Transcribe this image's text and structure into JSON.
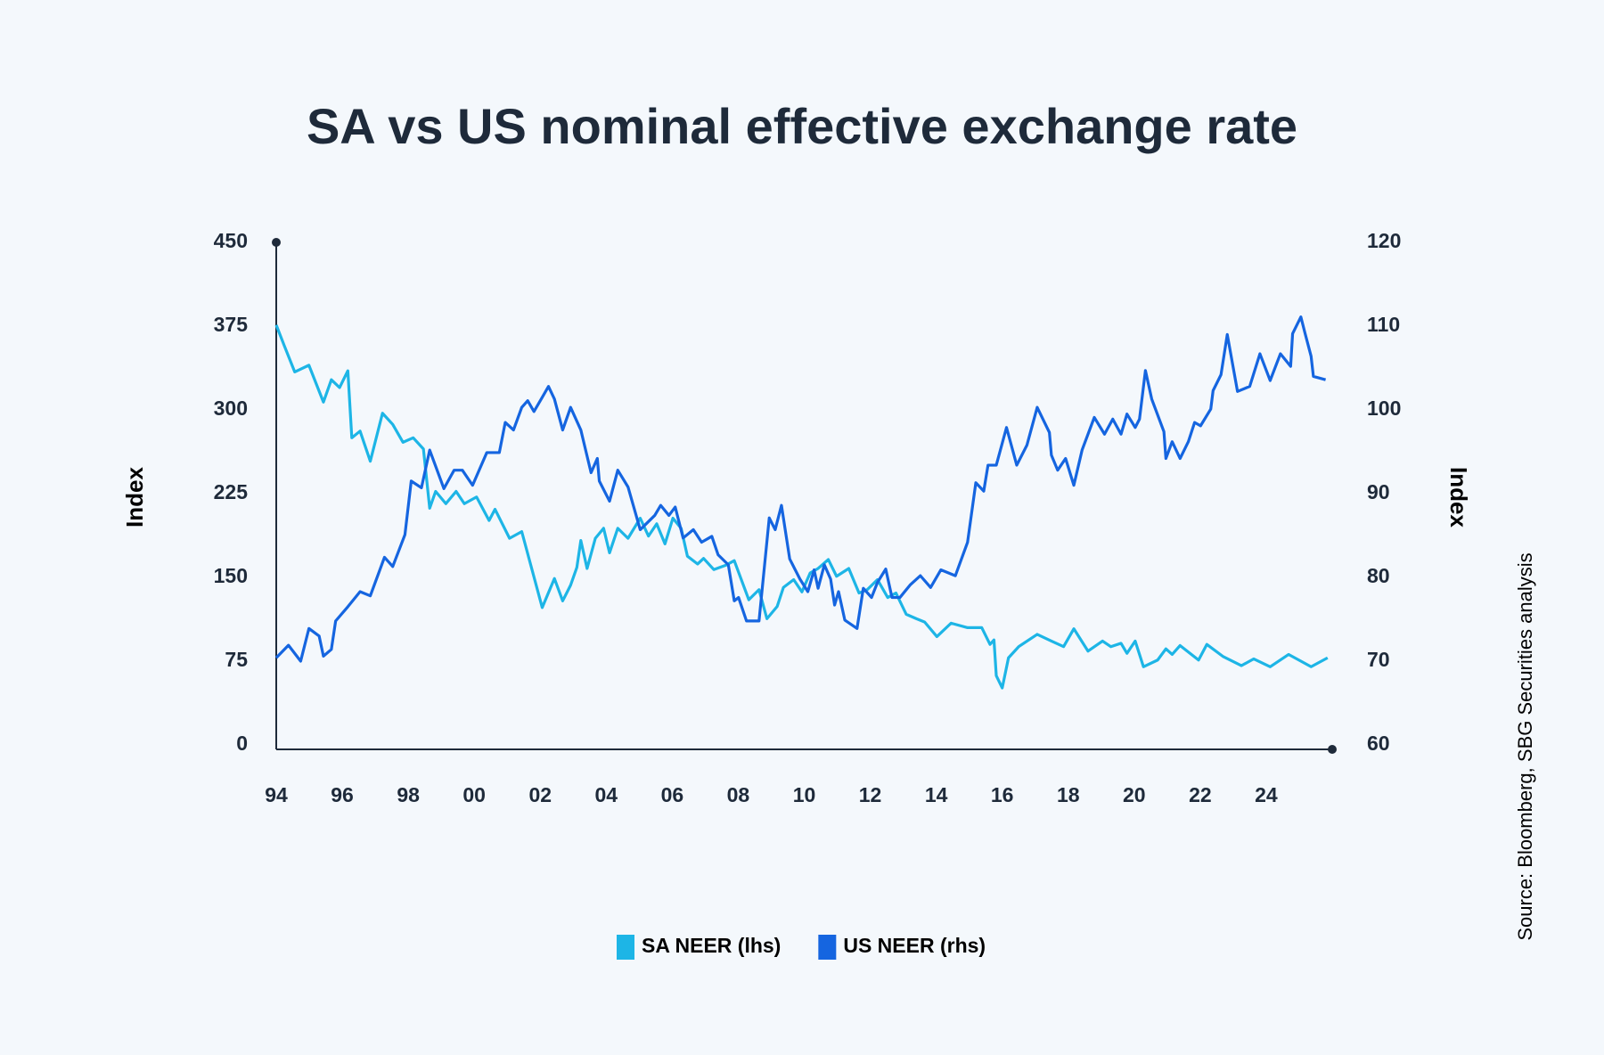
{
  "chart_data": {
    "type": "line",
    "title": "SA vs US nominal effective exchange rate",
    "y_label": "Index",
    "y2_label": "Index",
    "source": "Source: Bloomberg, SBG Securities analysis",
    "legend": "bottom",
    "xlim": [
      1994,
      2026
    ],
    "xticks": [
      {
        "value": 1994,
        "label": "94"
      },
      {
        "value": 1996,
        "label": "96"
      },
      {
        "value": 1998,
        "label": "98"
      },
      {
        "value": 2000,
        "label": "00"
      },
      {
        "value": 2002,
        "label": "02"
      },
      {
        "value": 2004,
        "label": "04"
      },
      {
        "value": 2006,
        "label": "06"
      },
      {
        "value": 2008,
        "label": "08"
      },
      {
        "value": 2010,
        "label": "10"
      },
      {
        "value": 2012,
        "label": "12"
      },
      {
        "value": 2014,
        "label": "14"
      },
      {
        "value": 2016,
        "label": "16"
      },
      {
        "value": 2018,
        "label": "18"
      },
      {
        "value": 2020,
        "label": "20"
      },
      {
        "value": 2022,
        "label": "22"
      },
      {
        "value": 2024,
        "label": "24"
      }
    ],
    "ylim": [
      0,
      450
    ],
    "yticks": [
      0,
      75,
      150,
      225,
      300,
      375,
      450
    ],
    "y2lim": [
      60,
      120
    ],
    "y2ticks": [
      60,
      70,
      80,
      90,
      100,
      110,
      120
    ],
    "series": [
      {
        "name": "SA NEER (lhs)",
        "color": "#1db5e6",
        "x": [
          1994,
          1994.25,
          1994.56,
          1994.99,
          1995.43,
          1995.67,
          1995.92,
          1996.17,
          1996.29,
          1996.54,
          1996.85,
          1997.22,
          1997.53,
          1997.84,
          1998.15,
          1998.46,
          1998.65,
          1998.83,
          1999.14,
          1999.45,
          1999.7,
          2000.07,
          2000.45,
          2000.63,
          2001.07,
          2001.44,
          2002.06,
          2002.43,
          2002.68,
          2002.92,
          2003.11,
          2003.23,
          2003.42,
          2003.67,
          2003.92,
          2004.1,
          2004.35,
          2004.66,
          2005.03,
          2005.28,
          2005.53,
          2005.78,
          2006.02,
          2006.27,
          2006.46,
          2006.77,
          2006.95,
          2007.26,
          2007.63,
          2007.88,
          2008.32,
          2008.63,
          2008.87,
          2009.18,
          2009.37,
          2009.68,
          2009.93,
          2010.18,
          2010.42,
          2010.73,
          2010.98,
          2011.35,
          2011.66,
          2011.91,
          2012.22,
          2012.53,
          2012.78,
          2013.09,
          2013.4,
          2013.65,
          2014.02,
          2014.45,
          2014.95,
          2015.38,
          2015.63,
          2015.75,
          2015.82,
          2016,
          2016.19,
          2016.5,
          2017.06,
          2017.49,
          2017.86,
          2018.17,
          2018.6,
          2019.04,
          2019.29,
          2019.6,
          2019.78,
          2020.03,
          2020.28,
          2020.71,
          2020.96,
          2021.15,
          2021.39,
          2021.95,
          2022.2,
          2022.7,
          2023.25,
          2023.62,
          2024.12,
          2024.68,
          2025.36,
          2025.86
        ],
        "values": [
          376,
          357,
          334,
          340,
          307,
          327,
          320,
          335,
          275,
          281,
          254,
          297,
          287,
          271,
          275,
          265,
          212,
          227,
          216,
          227,
          216,
          222,
          201,
          211,
          185,
          191,
          123,
          149,
          129,
          143,
          159,
          183,
          158,
          185,
          194,
          172,
          194,
          185,
          203,
          187,
          198,
          180,
          203,
          194,
          169,
          162,
          167,
          157,
          161,
          165,
          130,
          139,
          113,
          124,
          141,
          148,
          137,
          154,
          158,
          166,
          151,
          158,
          136,
          139,
          148,
          132,
          136,
          117,
          113,
          110,
          97,
          109,
          105,
          105,
          90,
          94,
          62,
          51,
          78,
          88,
          99,
          93,
          88,
          104,
          84,
          93,
          88,
          91,
          82,
          93,
          70,
          76,
          86,
          81,
          89,
          76,
          90,
          79,
          71,
          77,
          70,
          81,
          70,
          78
        ]
      },
      {
        "name": "US NEER (rhs)",
        "color": "#1565e0",
        "axis": "y2",
        "x": [
          1994,
          1994.37,
          1994.74,
          1994.99,
          1995.3,
          1995.43,
          1995.67,
          1995.8,
          1996.17,
          1996.54,
          1996.85,
          1997.28,
          1997.53,
          1997.9,
          1998.09,
          1998.4,
          1998.65,
          1999.08,
          1999.39,
          1999.64,
          1999.95,
          2000.38,
          2000.76,
          2000.94,
          2001.19,
          2001.44,
          2001.62,
          2001.81,
          2002.06,
          2002.25,
          2002.43,
          2002.68,
          2002.92,
          2003.23,
          2003.54,
          2003.73,
          2003.79,
          2004.1,
          2004.35,
          2004.66,
          2005.03,
          2005.47,
          2005.65,
          2005.9,
          2006.09,
          2006.33,
          2006.64,
          2006.89,
          2007.2,
          2007.39,
          2007.7,
          2007.88,
          2008.01,
          2008.25,
          2008.63,
          2008.94,
          2009.12,
          2009.31,
          2009.56,
          2009.87,
          2010.11,
          2010.3,
          2010.42,
          2010.61,
          2010.8,
          2010.92,
          2011.04,
          2011.23,
          2011.6,
          2011.79,
          2012.04,
          2012.22,
          2012.47,
          2012.66,
          2012.9,
          2013.21,
          2013.52,
          2013.83,
          2014.14,
          2014.58,
          2014.95,
          2015.2,
          2015.44,
          2015.57,
          2015.82,
          2016.13,
          2016.44,
          2016.75,
          2017.06,
          2017.43,
          2017.49,
          2017.68,
          2017.92,
          2018.17,
          2018.42,
          2018.79,
          2019.1,
          2019.35,
          2019.6,
          2019.78,
          2020.03,
          2020.16,
          2020.34,
          2020.53,
          2020.9,
          2020.96,
          2021.15,
          2021.39,
          2021.64,
          2021.83,
          2022.01,
          2022.32,
          2022.39,
          2022.63,
          2022.82,
          2023.13,
          2023.5,
          2023.81,
          2024.12,
          2024.43,
          2024.74,
          2024.8,
          2025.05,
          2025.18,
          2025.36,
          2025.43,
          2025.8
        ],
        "values": [
          70.4,
          71.9,
          70.0,
          73.9,
          73.0,
          70.6,
          71.4,
          74.8,
          76.5,
          78.3,
          77.8,
          82.4,
          81.3,
          85.1,
          91.5,
          90.7,
          95.2,
          90.6,
          92.8,
          92.8,
          91.0,
          94.9,
          94.9,
          98.5,
          97.6,
          100.3,
          101.1,
          99.8,
          101.5,
          102.8,
          101.3,
          97.6,
          100.3,
          97.6,
          92.5,
          94.2,
          91.5,
          89.1,
          92.8,
          90.8,
          85.7,
          87.4,
          88.6,
          87.4,
          88.4,
          84.7,
          85.7,
          84.2,
          84.9,
          82.7,
          81.5,
          77.2,
          77.6,
          74.8,
          74.8,
          87.1,
          85.7,
          88.6,
          82.2,
          79.8,
          78.3,
          80.9,
          78.7,
          81.5,
          79.8,
          76.7,
          78.3,
          74.9,
          73.9,
          78.7,
          77.6,
          79.4,
          81.0,
          77.6,
          77.6,
          79.1,
          80.2,
          78.8,
          80.9,
          80.2,
          84.2,
          91.3,
          90.3,
          93.4,
          93.4,
          97.9,
          93.4,
          95.8,
          100.3,
          97.3,
          94.6,
          92.8,
          94.2,
          91.0,
          95.2,
          99.1,
          97.1,
          98.9,
          97.1,
          99.5,
          97.9,
          98.9,
          104.7,
          101.3,
          97.4,
          94.2,
          96.2,
          94.2,
          96.2,
          98.5,
          98.1,
          100.1,
          102.3,
          104.2,
          109.0,
          102.2,
          102.8,
          106.7,
          103.5,
          106.7,
          105.2,
          109.1,
          111.1,
          109.1,
          106.4,
          104.0,
          103.6
        ]
      }
    ]
  }
}
